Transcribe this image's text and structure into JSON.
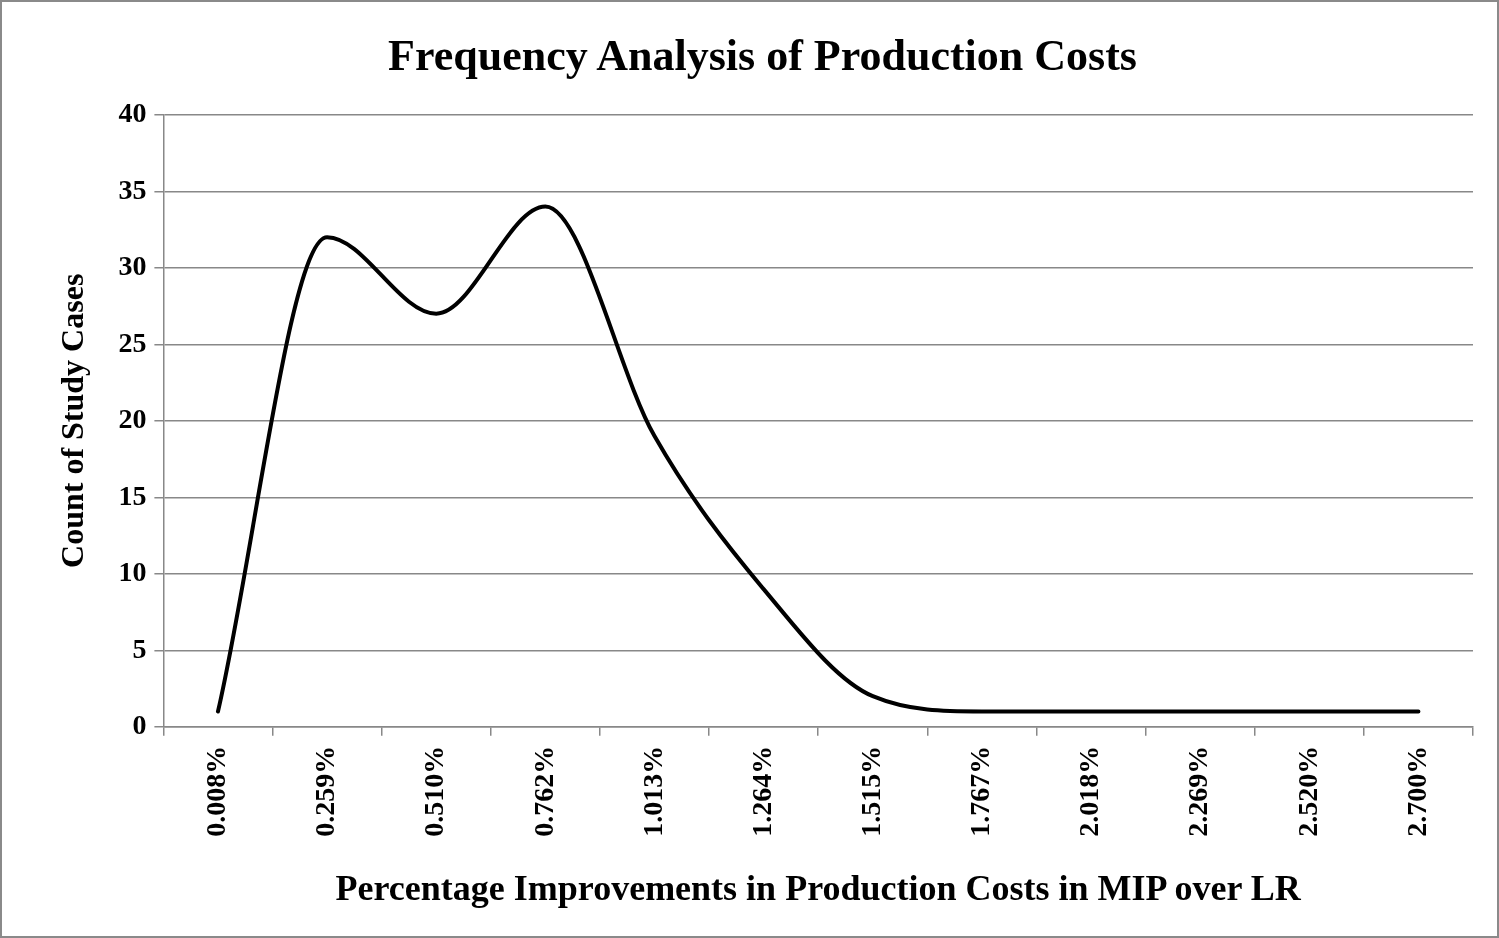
{
  "chart_data": {
    "type": "line",
    "title": "Frequency Analysis of Production Costs",
    "xlabel": "Percentage Improvements in Production Costs in MIP over LR",
    "ylabel": "Count of Study Cases",
    "categories": [
      "0.008%",
      "0.259%",
      "0.510%",
      "0.762%",
      "1.013%",
      "1.264%",
      "1.515%",
      "1.767%",
      "2.018%",
      "2.269%",
      "2.520%",
      "2.700%"
    ],
    "series": [
      {
        "color": "#000000",
        "values": [
          1,
          32,
          27,
          34,
          19,
          9,
          2,
          1,
          1,
          1,
          1,
          1
        ]
      }
    ],
    "ylim": [
      0,
      40
    ],
    "yticks": [
      0,
      5,
      10,
      15,
      20,
      25,
      30,
      35,
      40
    ],
    "grid": "y",
    "legend": false,
    "marker": "none",
    "line_style": "solid"
  }
}
